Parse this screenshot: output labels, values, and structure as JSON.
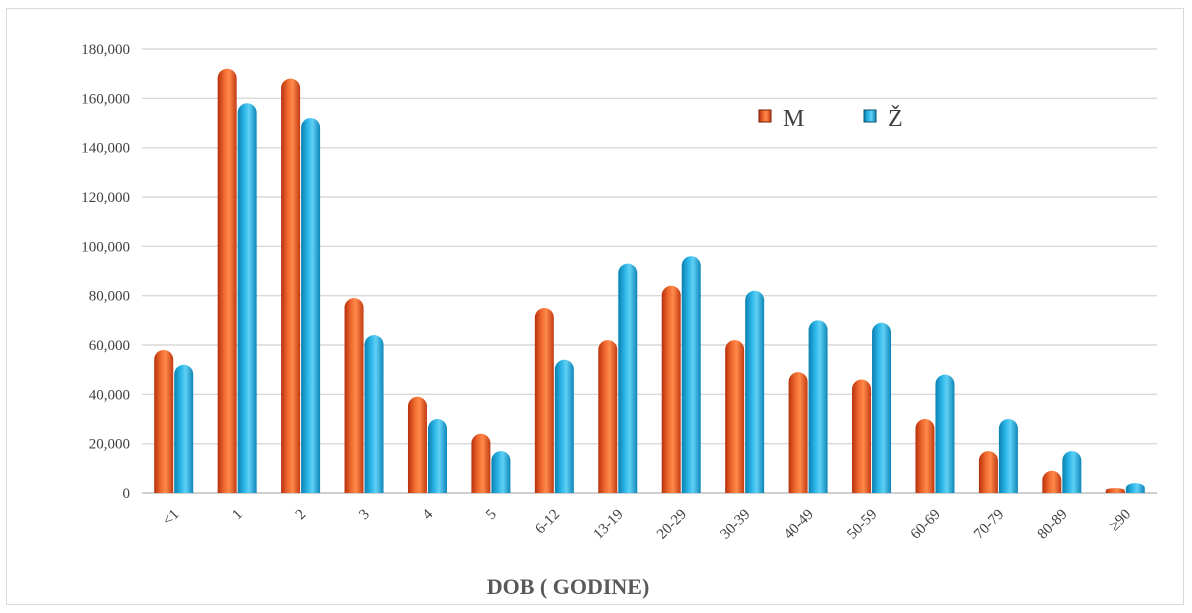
{
  "chart_data": {
    "type": "bar",
    "title": "",
    "xlabel": "DOB ( GODINE)",
    "ylabel": "",
    "ylim": [
      0,
      180000
    ],
    "yticks": [
      "0",
      "20,000",
      "40,000",
      "60,000",
      "80,000",
      "100,000",
      "120,000",
      "140,000",
      "160,000",
      "180,000"
    ],
    "grid": true,
    "legend_position": "top-right",
    "categories": [
      "<1",
      "1",
      "2",
      "3",
      "4",
      "5",
      "6-12",
      "13-19",
      "20-29",
      "30-39",
      "40-49",
      "50-59",
      "60-69",
      "70-79",
      "80-89",
      "≥90"
    ],
    "series": [
      {
        "name": "M",
        "color": "#e8501e",
        "values": [
          58000,
          172000,
          168000,
          79000,
          39000,
          24000,
          75000,
          62000,
          84000,
          62000,
          49000,
          46000,
          30000,
          17000,
          9000,
          2000
        ]
      },
      {
        "name": "Ž",
        "color": "#1aa3d9",
        "values": [
          52000,
          158000,
          152000,
          64000,
          30000,
          17000,
          54000,
          93000,
          96000,
          82000,
          70000,
          69000,
          48000,
          30000,
          17000,
          4000
        ]
      }
    ]
  }
}
